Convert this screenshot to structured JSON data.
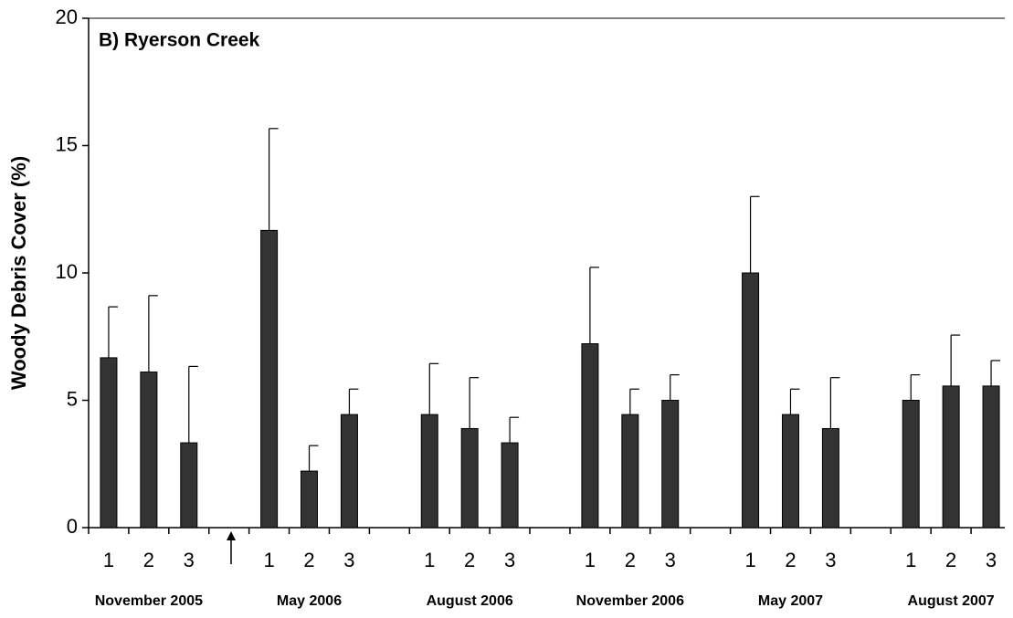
{
  "chart_data": {
    "type": "bar",
    "title": "B) Ryerson Creek",
    "y_label": "Woody Debris Cover (%)",
    "categories": [
      "1",
      "2",
      "3",
      null,
      "1",
      "2",
      "3",
      null,
      "1",
      "2",
      "3",
      null,
      "1",
      "2",
      "3",
      null,
      "1",
      "2",
      "3",
      null,
      "1",
      "2",
      "3"
    ],
    "values": [
      6.67,
      6.11,
      3.33,
      null,
      11.67,
      2.22,
      4.44,
      null,
      4.44,
      3.89,
      3.33,
      null,
      7.22,
      4.44,
      5.0,
      null,
      10.0,
      4.44,
      3.89,
      null,
      5.0,
      5.56,
      5.56
    ],
    "errors": [
      2.0,
      3.0,
      3.0,
      null,
      4.0,
      1.0,
      1.0,
      null,
      2.0,
      2.0,
      1.0,
      null,
      3.0,
      1.0,
      1.0,
      null,
      3.0,
      1.0,
      2.0,
      null,
      1.0,
      2.0,
      1.0
    ],
    "group_labels": [
      "November 2005",
      "May 2006",
      "August 2006",
      "November 2006",
      "May 2007",
      "August 2007"
    ],
    "color": "#333333",
    "ylim": [
      0,
      20
    ],
    "yticks": [
      0,
      5,
      10,
      15,
      20
    ]
  }
}
